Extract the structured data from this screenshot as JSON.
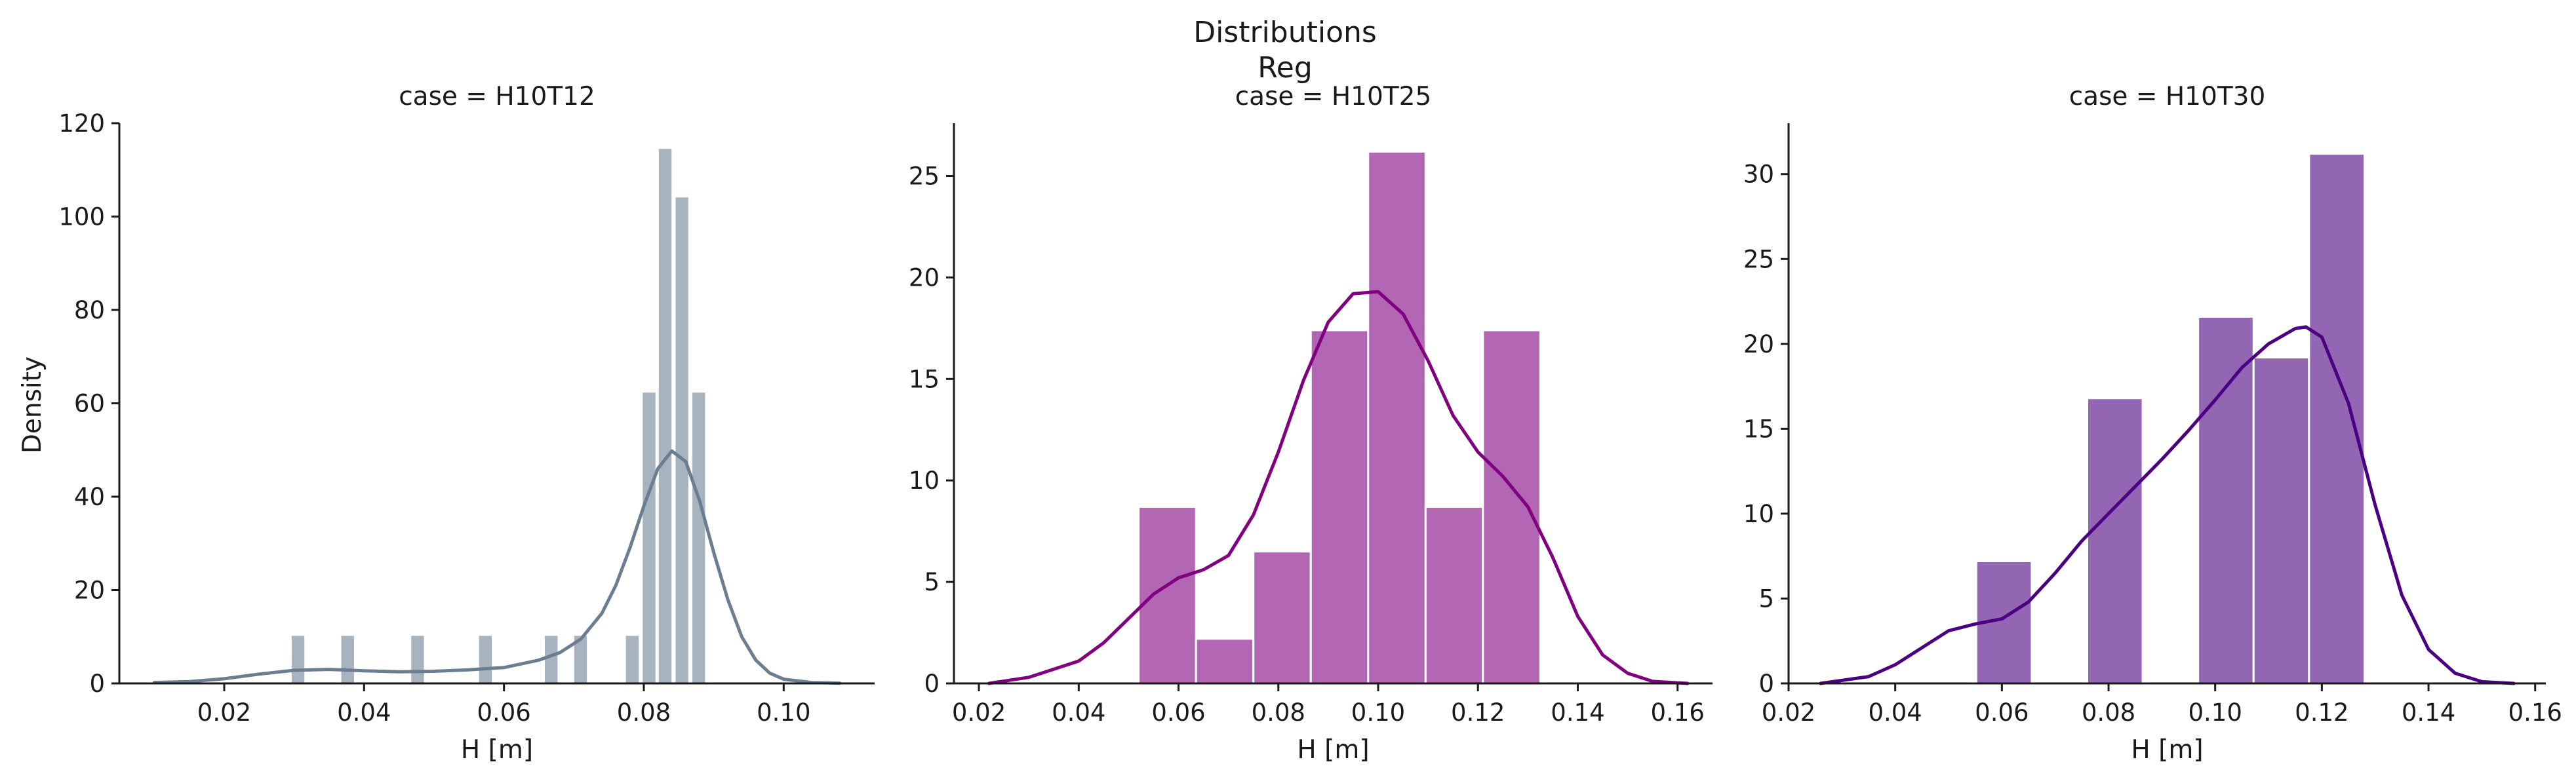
{
  "figure": {
    "title_line1": "Distributions",
    "title_line2": "Reg",
    "ylabel": "Density"
  },
  "chart_data": [
    {
      "type": "bar",
      "title": "case = H10T12",
      "xlabel": "H [m]",
      "ylabel": "Density",
      "xlim": [
        0.005,
        0.113
      ],
      "ylim": [
        0,
        120
      ],
      "xticks": [
        "0.02",
        "0.04",
        "0.06",
        "0.08",
        "0.10"
      ],
      "yticks": [
        "0",
        "20",
        "40",
        "60",
        "80",
        "100",
        "120"
      ],
      "color": "#6b7e91",
      "bar_color": "#a7b3bf",
      "bars": [
        {
          "x0": 0.0295,
          "x1": 0.0316,
          "value": 10.4
        },
        {
          "x0": 0.0366,
          "x1": 0.0387,
          "value": 10.4
        },
        {
          "x0": 0.0466,
          "x1": 0.0487,
          "value": 10.4
        },
        {
          "x0": 0.0563,
          "x1": 0.0584,
          "value": 10.4
        },
        {
          "x0": 0.0657,
          "x1": 0.0678,
          "value": 10.4
        },
        {
          "x0": 0.0699,
          "x1": 0.072,
          "value": 10.4
        },
        {
          "x0": 0.0773,
          "x1": 0.0794,
          "value": 10.4
        },
        {
          "x0": 0.0797,
          "x1": 0.0818,
          "value": 62.5
        },
        {
          "x0": 0.082,
          "x1": 0.0841,
          "value": 114.7
        },
        {
          "x0": 0.0844,
          "x1": 0.0865,
          "value": 104.3
        },
        {
          "x0": 0.0868,
          "x1": 0.0889,
          "value": 62.5
        }
      ],
      "kde": {
        "x": [
          0.01,
          0.015,
          0.02,
          0.025,
          0.03,
          0.035,
          0.04,
          0.045,
          0.05,
          0.055,
          0.06,
          0.065,
          0.068,
          0.071,
          0.074,
          0.076,
          0.078,
          0.08,
          0.082,
          0.084,
          0.086,
          0.088,
          0.09,
          0.092,
          0.094,
          0.096,
          0.098,
          0.1,
          0.104,
          0.108
        ],
        "y": [
          0.2,
          0.4,
          1.0,
          2.0,
          2.8,
          3.0,
          2.7,
          2.5,
          2.6,
          2.9,
          3.4,
          5.0,
          6.6,
          9.5,
          15.0,
          21.0,
          29.0,
          38.0,
          46.0,
          49.8,
          47.5,
          39.0,
          28.0,
          18.0,
          10.0,
          5.0,
          2.2,
          0.9,
          0.2,
          0.05
        ]
      }
    },
    {
      "type": "bar",
      "title": "case = H10T25",
      "xlabel": "H [m]",
      "xlim": [
        0.015,
        0.167
      ],
      "ylim": [
        0,
        27.6
      ],
      "xticks": [
        "0.02",
        "0.04",
        "0.06",
        "0.08",
        "0.10",
        "0.12",
        "0.14",
        "0.16"
      ],
      "yticks": [
        "0",
        "5",
        "10",
        "15",
        "20",
        "25"
      ],
      "color": "#800080",
      "bar_color": "#b366b3",
      "bars": [
        {
          "x0": 0.052,
          "x1": 0.0635,
          "value": 8.7
        },
        {
          "x0": 0.0635,
          "x1": 0.075,
          "value": 2.2
        },
        {
          "x0": 0.075,
          "x1": 0.0865,
          "value": 6.5
        },
        {
          "x0": 0.0865,
          "x1": 0.098,
          "value": 17.4
        },
        {
          "x0": 0.098,
          "x1": 0.1095,
          "value": 26.2
        },
        {
          "x0": 0.1095,
          "x1": 0.121,
          "value": 8.7
        },
        {
          "x0": 0.121,
          "x1": 0.1325,
          "value": 17.4
        }
      ],
      "kde": {
        "x": [
          0.022,
          0.03,
          0.04,
          0.045,
          0.05,
          0.055,
          0.06,
          0.065,
          0.07,
          0.075,
          0.08,
          0.085,
          0.09,
          0.095,
          0.1,
          0.105,
          0.11,
          0.115,
          0.12,
          0.125,
          0.13,
          0.135,
          0.14,
          0.145,
          0.15,
          0.155,
          0.162
        ],
        "y": [
          0.0,
          0.3,
          1.1,
          2.0,
          3.2,
          4.4,
          5.2,
          5.6,
          6.3,
          8.3,
          11.4,
          14.9,
          17.8,
          19.2,
          19.3,
          18.2,
          15.9,
          13.2,
          11.4,
          10.2,
          8.7,
          6.2,
          3.3,
          1.4,
          0.5,
          0.1,
          0.0
        ]
      }
    },
    {
      "type": "bar",
      "title": "case = H10T30",
      "xlabel": "H [m]",
      "xlim": [
        0.02,
        0.162
      ],
      "ylim": [
        0,
        33
      ],
      "xticks": [
        "0.02",
        "0.04",
        "0.06",
        "0.08",
        "0.10",
        "0.12",
        "0.14",
        "0.16"
      ],
      "yticks": [
        "0",
        "5",
        "10",
        "15",
        "20",
        "25",
        "30"
      ],
      "color": "#4b0082",
      "bar_color": "#9266b3",
      "bars": [
        {
          "x0": 0.0552,
          "x1": 0.0656,
          "value": 7.2
        },
        {
          "x0": 0.076,
          "x1": 0.0864,
          "value": 16.8
        },
        {
          "x0": 0.0968,
          "x1": 0.1072,
          "value": 21.6
        },
        {
          "x0": 0.1072,
          "x1": 0.1176,
          "value": 19.2
        },
        {
          "x0": 0.1176,
          "x1": 0.128,
          "value": 31.2
        }
      ],
      "kde": {
        "x": [
          0.026,
          0.035,
          0.04,
          0.045,
          0.05,
          0.055,
          0.06,
          0.065,
          0.07,
          0.075,
          0.08,
          0.085,
          0.09,
          0.095,
          0.1,
          0.105,
          0.11,
          0.115,
          0.117,
          0.12,
          0.125,
          0.13,
          0.135,
          0.14,
          0.145,
          0.15,
          0.156
        ],
        "y": [
          0.0,
          0.4,
          1.1,
          2.1,
          3.1,
          3.5,
          3.8,
          4.8,
          6.5,
          8.4,
          10.0,
          11.6,
          13.2,
          14.9,
          16.7,
          18.6,
          20.0,
          20.9,
          21.0,
          20.4,
          16.5,
          10.5,
          5.2,
          2.0,
          0.6,
          0.1,
          0.0
        ]
      }
    }
  ]
}
